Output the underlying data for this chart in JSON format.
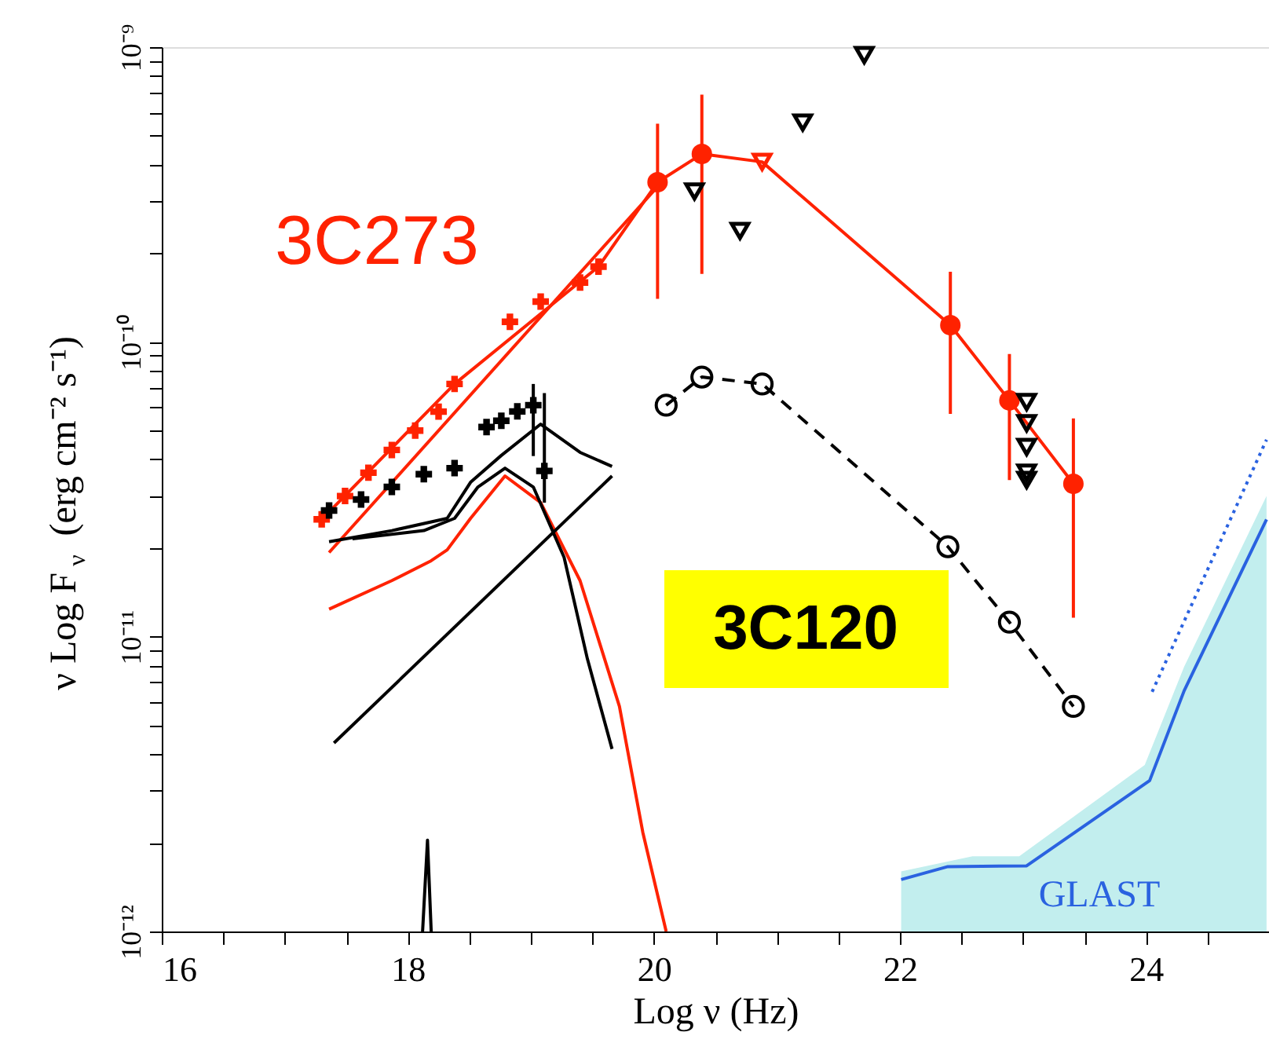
{
  "chart_data": {
    "type": "line",
    "xlabel": "Log ν (Hz)",
    "ylabel": "ν Log F$_{ν}$ (erg cm⁻² s⁻¹)",
    "annotations": [
      "3C120"
    ],
    "xlim": [
      16,
      25
    ],
    "ylim": [
      1e-12,
      1e-09
    ],
    "log": "y",
    "grid": false,
    "xticks": [
      16,
      {
        "value": 16.5,
        "label": null
      },
      {
        "value": 17,
        "label": null
      },
      {
        "value": 17.5,
        "label": null
      },
      18,
      {
        "value": 18.5,
        "label": null
      },
      {
        "value": 19,
        "label": null
      },
      {
        "value": 19.5,
        "label": null
      },
      20,
      {
        "value": 20.5,
        "label": null
      },
      {
        "value": 21,
        "label": null
      },
      {
        "value": 21.5,
        "label": null
      },
      22,
      {
        "value": 22.5,
        "label": null
      },
      {
        "value": 23,
        "label": null
      },
      {
        "value": 23.5,
        "label": null
      },
      24,
      {
        "value": 24.5,
        "label": null
      }
    ],
    "yticks": [
      {
        "value": 1e-12,
        "label": "10⁻¹²"
      },
      {
        "value": 2e-12,
        "label": null
      },
      {
        "value": 3e-12,
        "label": null
      },
      {
        "value": 4e-12,
        "label": null
      },
      {
        "value": 5e-12,
        "label": null
      },
      {
        "value": 6e-12,
        "label": null
      },
      {
        "value": 7e-12,
        "label": null
      },
      {
        "value": 8e-12,
        "label": null
      },
      {
        "value": 9e-12,
        "label": null
      },
      {
        "value": 1e-11,
        "label": "10⁻¹¹"
      },
      {
        "value": 2e-11,
        "label": null
      },
      {
        "value": 3e-11,
        "label": null
      },
      {
        "value": 4e-11,
        "label": null
      },
      {
        "value": 5e-11,
        "label": null
      },
      {
        "value": 6e-11,
        "label": null
      },
      {
        "value": 7e-11,
        "label": null
      },
      {
        "value": 8e-11,
        "label": null
      },
      {
        "value": 9e-11,
        "label": null
      },
      {
        "value": 1e-10,
        "label": "10⁻¹⁰"
      },
      {
        "value": 2e-10,
        "label": null
      },
      {
        "value": 3e-10,
        "label": null
      },
      {
        "value": 4e-10,
        "label": null
      },
      {
        "value": 5e-10,
        "label": null
      },
      {
        "value": 6e-10,
        "label": null
      },
      {
        "value": 7e-10,
        "label": null
      },
      {
        "value": 8e-10,
        "label": null
      },
      {
        "value": 9e-10,
        "label": null
      },
      {
        "value": 1e-09,
        "label": "10⁻⁹"
      }
    ],
    "series": [
      {
        "type": "area",
        "color": "#c2eeee",
        "x": [
          22.01,
          22.59,
          22.97,
          23.99,
          24.31,
          24.98
        ],
        "values": [
          1.6e-12,
          1.8e-12,
          1.8e-12,
          3.67e-12,
          7.9e-12,
          3e-11
        ]
      },
      {
        "type": "line",
        "name": "GLAST",
        "color": "#2a62e0",
        "marker": "none",
        "line_style": "solid",
        "x": [
          22.01,
          22.39,
          23.03,
          24.03,
          24.31,
          24.98
        ],
        "values": [
          1.5e-12,
          1.66e-12,
          1.67e-12,
          3.25e-12,
          6.55e-12,
          2.5e-11
        ]
      },
      {
        "type": "line",
        "color": "#2a62e0",
        "marker": "none",
        "line_style": "dotted",
        "x": [
          24.05,
          24.98
        ],
        "values": [
          6.5e-12,
          4.66e-11
        ]
      },
      {
        "type": "line",
        "color": "#ff2200",
        "marker": "none",
        "line_style": "solid",
        "x": [
          17.3,
          18.38,
          19.55,
          20.03,
          20.39,
          20.88,
          22.41,
          22.89,
          23.41
        ],
        "values": [
          2.5e-11,
          7.2e-11,
          1.8e-10,
          3.48e-10,
          4.34e-10,
          4.08e-10,
          1.14e-10,
          6.33e-11,
          3.3e-11
        ]
      },
      {
        "type": "scatter",
        "name": "3C273",
        "color": "#ff2200",
        "marker": "cross",
        "x": [
          17.3,
          17.49,
          17.68,
          17.87,
          18.06,
          18.25,
          18.38,
          18.83,
          19.08,
          19.4,
          19.55
        ],
        "values": [
          2.5e-11,
          3e-11,
          3.6e-11,
          4.3e-11,
          5e-11,
          5.8e-11,
          7.2e-11,
          1.17e-10,
          1.37e-10,
          1.59e-10,
          1.8e-10
        ]
      },
      {
        "type": "scatter",
        "color": "#ff2200",
        "marker": "circle",
        "x": [
          20.03,
          20.39,
          22.41,
          22.89,
          23.41
        ],
        "values": [
          3.48e-10,
          4.34e-10,
          1.14e-10,
          6.33e-11,
          3.3e-11
        ],
        "errors": [
          [
            1.4e-10,
            5.5e-10
          ],
          [
            1.7e-10,
            6.9e-10
          ],
          [
            5.7e-11,
            1.73e-10
          ],
          [
            3.4e-11,
            9.1e-11
          ],
          [
            1.16e-11,
            5.5e-11
          ]
        ]
      },
      {
        "type": "scatter",
        "color": "#ff2200",
        "marker": "triangle",
        "x": [
          20.88
        ],
        "values": [
          4.08e-10
        ]
      },
      {
        "type": "line",
        "color": "#ff2200",
        "marker": "none",
        "line_style": "solid",
        "x": [
          17.36,
          20.04
        ],
        "values": [
          1.93e-11,
          3.4e-10
        ]
      },
      {
        "type": "line",
        "color": "#ff2200",
        "marker": "none",
        "line_style": "solid",
        "x": [
          17.36,
          17.87,
          18.19,
          18.32,
          18.51,
          18.79,
          19.08,
          19.4,
          19.72,
          19.91,
          20.1
        ],
        "values": [
          1.24e-11,
          1.55e-11,
          1.81e-11,
          1.97e-11,
          2.52e-11,
          3.51e-11,
          2.85e-11,
          1.55e-11,
          5.8e-12,
          2.17e-12,
          1e-12
        ]
      },
      {
        "type": "scatter",
        "color": "#000000",
        "marker": "cross",
        "x": [
          17.36,
          17.62,
          17.87,
          18.13,
          18.38,
          18.64,
          18.76,
          18.89,
          19.02,
          19.11
        ],
        "values": [
          2.68e-11,
          2.92e-11,
          3.22e-11,
          3.56e-11,
          3.73e-11,
          5.14e-11,
          5.4e-11,
          5.81e-11,
          6.1e-11,
          3.65e-11
        ],
        "errors": [
          null,
          null,
          null,
          null,
          null,
          null,
          null,
          null,
          [
            4.1e-11,
            7.2e-11
          ],
          [
            2.85e-11,
            6.7e-11
          ]
        ]
      },
      {
        "type": "scatter",
        "color": "#000000",
        "marker": "triangle",
        "x": [
          20.33,
          20.7,
          21.21,
          21.71,
          23.03,
          23.03,
          23.03,
          23.03,
          23.03
        ],
        "values": [
          3.24e-10,
          2.38e-10,
          5.55e-10,
          9.4e-10,
          6.25e-11,
          5.3e-11,
          4.4e-11,
          3.6e-11,
          3.4e-11
        ]
      },
      {
        "type": "line",
        "color": "#000000",
        "marker": "none",
        "line_style": "solid",
        "x": [
          17.36,
          17.87,
          18.32,
          18.51,
          18.76,
          19.08,
          19.4,
          19.66
        ],
        "values": [
          2.1e-11,
          2.29e-11,
          2.52e-11,
          3.34e-11,
          4.12e-11,
          5.26e-11,
          4.22e-11,
          3.78e-11
        ]
      },
      {
        "type": "line",
        "color": "#000000",
        "marker": "none",
        "line_style": "solid",
        "x": [
          17.55,
          18.13,
          18.38,
          18.57,
          18.79,
          19.02,
          19.27,
          19.46,
          19.66
        ],
        "values": [
          2.15e-11,
          2.29e-11,
          2.52e-11,
          3.22e-11,
          3.73e-11,
          3.22e-11,
          1.86e-11,
          8.4e-12,
          4.16e-12
        ]
      },
      {
        "type": "line",
        "color": "#000000",
        "marker": "none",
        "line_style": "solid",
        "x": [
          17.4,
          19.66
        ],
        "values": [
          4.36e-12,
          3.51e-11
        ]
      },
      {
        "type": "line",
        "color": "#000000",
        "marker": "none",
        "line_style": "solid",
        "x": [
          18.12,
          18.16,
          18.19
        ],
        "values": [
          1e-12,
          2.04e-12,
          1e-12
        ]
      },
      {
        "type": "line",
        "color": "#000000",
        "marker": "circle",
        "line_style": "dashed",
        "x": [
          20.1,
          20.39,
          20.88,
          22.39,
          22.89,
          23.41
        ],
        "values": [
          6.1e-11,
          7.6e-11,
          7.2e-11,
          2.02e-11,
          1.12e-11,
          5.8e-12
        ]
      }
    ]
  }
}
